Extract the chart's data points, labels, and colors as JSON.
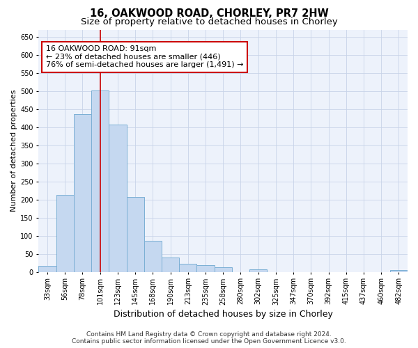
{
  "title": "16, OAKWOOD ROAD, CHORLEY, PR7 2HW",
  "subtitle": "Size of property relative to detached houses in Chorley",
  "xlabel": "Distribution of detached houses by size in Chorley",
  "ylabel": "Number of detached properties",
  "categories": [
    "33sqm",
    "56sqm",
    "78sqm",
    "101sqm",
    "123sqm",
    "145sqm",
    "168sqm",
    "190sqm",
    "213sqm",
    "235sqm",
    "258sqm",
    "280sqm",
    "302sqm",
    "325sqm",
    "347sqm",
    "370sqm",
    "392sqm",
    "415sqm",
    "437sqm",
    "460sqm",
    "482sqm"
  ],
  "values": [
    17,
    212,
    436,
    501,
    408,
    207,
    86,
    39,
    22,
    19,
    12,
    0,
    7,
    0,
    0,
    0,
    0,
    0,
    0,
    0,
    4
  ],
  "bar_color": "#c5d8f0",
  "bar_edge_color": "#7bafd4",
  "vline_color": "#cc0000",
  "vline_x_index": 3,
  "annotation_label": "16 OAKWOOD ROAD: 91sqm",
  "annotation_line1": "← 23% of detached houses are smaller (446)",
  "annotation_line2": "76% of semi-detached houses are larger (1,491) →",
  "annotation_box_facecolor": "#ffffff",
  "annotation_box_edgecolor": "#cc0000",
  "ylim": [
    0,
    670
  ],
  "yticks": [
    0,
    50,
    100,
    150,
    200,
    250,
    300,
    350,
    400,
    450,
    500,
    550,
    600,
    650
  ],
  "grid_color": "#c8d4e8",
  "background_color": "#edf2fb",
  "footer_line1": "Contains HM Land Registry data © Crown copyright and database right 2024.",
  "footer_line2": "Contains public sector information licensed under the Open Government Licence v3.0.",
  "title_fontsize": 10.5,
  "subtitle_fontsize": 9.5,
  "xlabel_fontsize": 9,
  "ylabel_fontsize": 8,
  "tick_fontsize": 7,
  "annotation_fontsize": 8,
  "footer_fontsize": 6.5
}
